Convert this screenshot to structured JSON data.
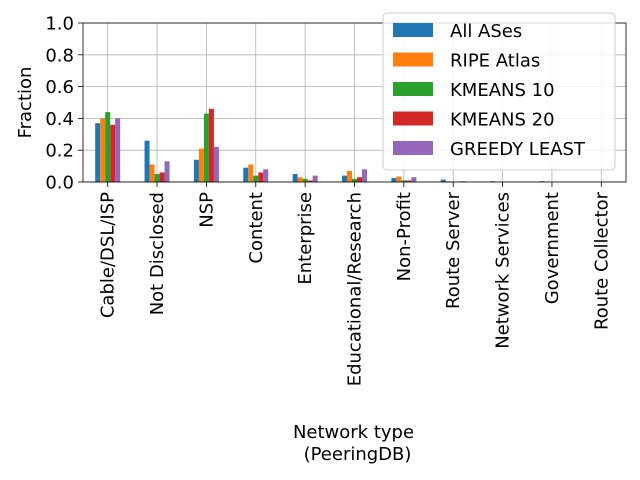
{
  "chart_data": {
    "type": "bar",
    "title": "",
    "xlabel_lines": [
      "Network type",
      "(PeeringDB)"
    ],
    "ylabel": "Fraction",
    "ylim": [
      0,
      1.0
    ],
    "yticks": [
      "0.0",
      "0.2",
      "0.4",
      "0.6",
      "0.8",
      "1.0"
    ],
    "grid": true,
    "legend_position": "top-right",
    "categories": [
      "Cable/DSL/ISP",
      "Not Disclosed",
      "NSP",
      "Content",
      "Enterprise",
      "Educational/Research",
      "Non-Profit",
      "Route Server",
      "Network Services",
      "Government",
      "Route Collector"
    ],
    "series": [
      {
        "name": "All ASes",
        "color": "#1f77b4",
        "values": [
          0.37,
          0.26,
          0.14,
          0.09,
          0.05,
          0.04,
          0.025,
          0.015,
          0.005,
          0.005,
          0.002
        ]
      },
      {
        "name": "RIPE Atlas",
        "color": "#ff7f0e",
        "values": [
          0.4,
          0.11,
          0.21,
          0.11,
          0.03,
          0.07,
          0.035,
          0.005,
          0.003,
          0.002,
          0.001
        ]
      },
      {
        "name": "KMEANS 10",
        "color": "#2ca02c",
        "values": [
          0.44,
          0.05,
          0.43,
          0.04,
          0.02,
          0.02,
          0.01,
          0.003,
          0.002,
          0.001,
          0.001
        ]
      },
      {
        "name": "KMEANS 20",
        "color": "#d62728",
        "values": [
          0.36,
          0.06,
          0.46,
          0.06,
          0.01,
          0.03,
          0.01,
          0.003,
          0.002,
          0.001,
          0.001
        ]
      },
      {
        "name": "GREEDY LEAST",
        "color": "#9467bd",
        "values": [
          0.4,
          0.13,
          0.22,
          0.08,
          0.04,
          0.08,
          0.03,
          0.005,
          0.003,
          0.002,
          0.002
        ]
      }
    ]
  }
}
